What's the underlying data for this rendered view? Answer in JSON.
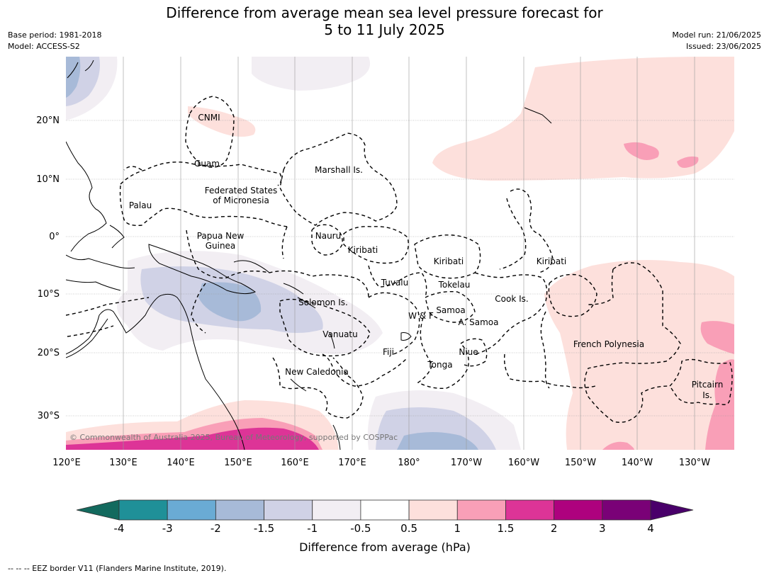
{
  "header": {
    "title_line1": "Difference from average mean sea level pressure forecast for",
    "title_line2": "5 to 11 July 2025",
    "base_period": "Base period: 1981-2018",
    "model": "Model: ACCESS-S2",
    "model_run": "Model run: 21/06/2025",
    "issued": "Issued: 23/06/2025"
  },
  "map": {
    "lat_labels": [
      "20°N",
      "10°N",
      "0°",
      "10°S",
      "20°S",
      "30°S"
    ],
    "lon_labels": [
      "120°E",
      "130°E",
      "140°E",
      "150°E",
      "160°E",
      "170°E",
      "180°",
      "170°W",
      "160°W",
      "150°W",
      "140°W",
      "130°W"
    ],
    "regions": {
      "cnmi": "CNMI",
      "guam": "Guam",
      "marshall": "Marshall Is.",
      "fsm1": "Federated States",
      "fsm2": "of Micronesia",
      "palau": "Palau",
      "png1": "Papua New",
      "png2": "Guinea",
      "nauru": "Nauru",
      "kiribati_w": "Kiribati",
      "kiribati_c": "Kiribati",
      "kiribati_e": "Kiribati",
      "tuvalu": "Tuvalu",
      "tokelau": "Tokelau",
      "cook": "Cook Is.",
      "solomon": "Solomon Is.",
      "wf": "W & F",
      "samoa": "Samoa",
      "asamoa": "A. Samoa",
      "vanuatu": "Vanuatu",
      "fiji": "Fiji",
      "niue": "Niue",
      "tonga": "Tonga",
      "fp": "French Polynesia",
      "pitcairn1": "Pitcairn",
      "pitcairn2": "Is.",
      "newcal": "New Caledonia"
    },
    "copyright": "© Commonwealth of Australia 2025, Bureau of Meteorology, supported by COSPPac"
  },
  "colorbar": {
    "ticks": [
      "-4",
      "-3",
      "-2",
      "-1.5",
      "-1",
      "-0.5",
      "0.5",
      "1",
      "1.5",
      "2",
      "3",
      "4"
    ],
    "colors": [
      "#136a5e",
      "#1f9098",
      "#6aabd4",
      "#a7bad8",
      "#d0d2e6",
      "#f2eef3",
      "#ffffff",
      "#fde0dc",
      "#f99fb7",
      "#dd3497",
      "#ae017e",
      "#7a0177",
      "#49006a"
    ],
    "label": "Difference from average (hPa)"
  },
  "footer": {
    "legend": "-- -- -- EEZ border V11 (Flanders Marine Institute, 2019)."
  }
}
